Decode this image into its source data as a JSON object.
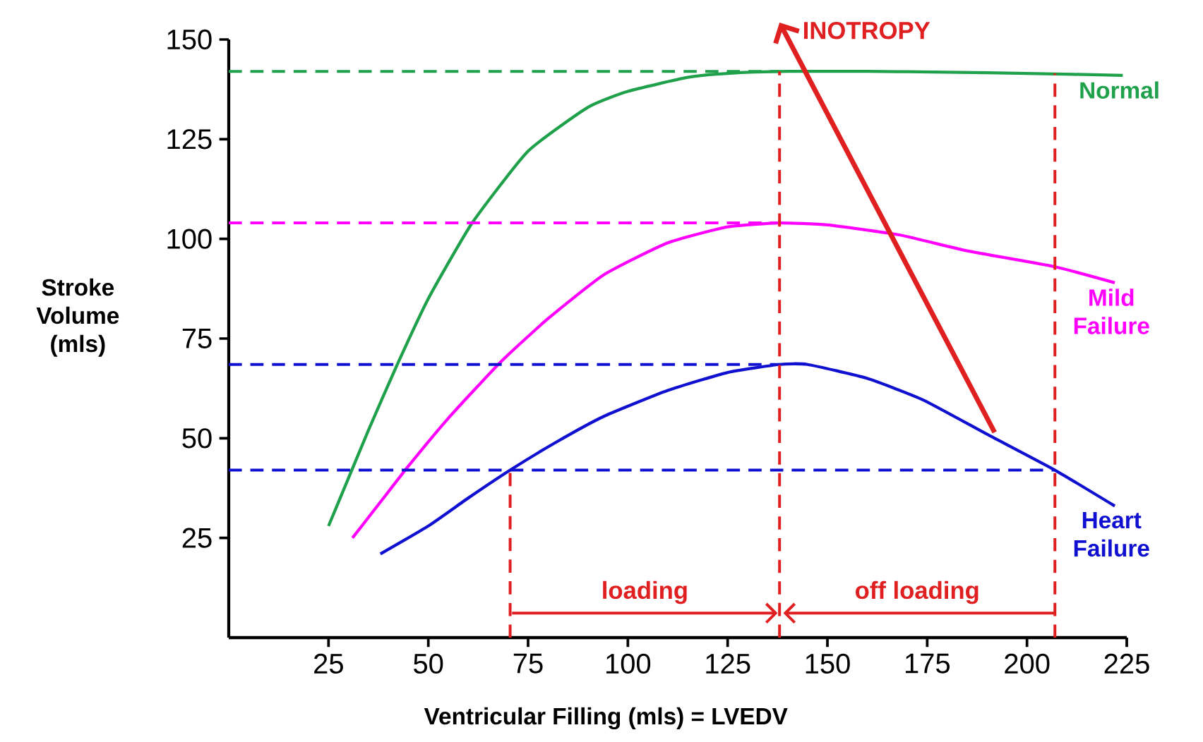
{
  "chart_data": {
    "type": "line",
    "xlabel": "Ventricular Filling (mls) = LVEDV",
    "ylabel": "Stroke Volume (mls)",
    "xlim": [
      0,
      225
    ],
    "ylim": [
      0,
      150
    ],
    "xticks": [
      25,
      50,
      75,
      100,
      125,
      150,
      175,
      200,
      225
    ],
    "yticks": [
      25,
      50,
      75,
      100,
      125,
      150
    ],
    "series": [
      {
        "name": "Normal",
        "color": "#1fa04a",
        "line_style": "solid",
        "x": [
          25,
          30,
          35,
          42,
          50,
          61,
          75,
          90,
          100,
          115,
          125,
          140,
          160,
          180,
          200,
          224
        ],
        "values": [
          28,
          40,
          52,
          68,
          85,
          104,
          122,
          133,
          137,
          140.5,
          141.5,
          142,
          142,
          141.8,
          141.5,
          141
        ]
      },
      {
        "name": "Mild Failure",
        "color": "#ff00ff",
        "line_style": "solid",
        "x": [
          31,
          38,
          45,
          55,
          68,
          80,
          94,
          110,
          125,
          138,
          150,
          168,
          185,
          207,
          222
        ],
        "values": [
          25,
          34,
          43,
          55,
          69,
          80,
          91,
          99,
          103,
          104,
          103.5,
          101,
          97,
          93,
          89
        ]
      },
      {
        "name": "Heart Failure",
        "color": "#1010d0",
        "line_style": "solid",
        "x": [
          38,
          50,
          60,
          70.5,
          82,
          94,
          110,
          125,
          138,
          145,
          160,
          174,
          190,
          207,
          222
        ],
        "values": [
          21,
          28,
          35,
          42,
          49,
          55.5,
          62,
          66.5,
          68.5,
          68.5,
          65,
          59.6,
          51,
          42,
          33
        ]
      },
      {
        "color": "#1fa04a",
        "line_style": "dashed",
        "x": [
          0,
          138
        ],
        "values": [
          142,
          142
        ]
      },
      {
        "color": "#ff00ff",
        "line_style": "dashed",
        "x": [
          0,
          138
        ],
        "values": [
          104,
          104
        ]
      },
      {
        "color": "#1010d0",
        "line_style": "dashed",
        "x": [
          0,
          138
        ],
        "values": [
          68.5,
          68.5
        ]
      },
      {
        "color": "#1010d0",
        "line_style": "dashed",
        "x": [
          0,
          207
        ],
        "values": [
          42,
          42
        ]
      },
      {
        "color": "#e02020",
        "line_style": "dashed",
        "x": [
          70.5,
          70.5
        ],
        "values": [
          0,
          42
        ]
      },
      {
        "color": "#e02020",
        "line_style": "dashed",
        "x": [
          138,
          138
        ],
        "values": [
          0,
          142
        ]
      },
      {
        "color": "#e02020",
        "line_style": "dashed",
        "x": [
          207,
          207
        ],
        "values": [
          0,
          141.5
        ]
      }
    ],
    "annotations": [
      "loading",
      "off loading",
      "INOTROPY"
    ]
  }
}
